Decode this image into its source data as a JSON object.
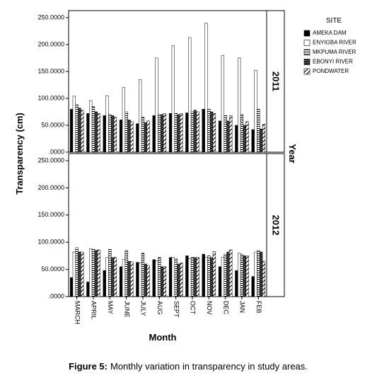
{
  "chart_data": {
    "type": "bar",
    "x_label": "Month",
    "y_label": "Transparency (cm)",
    "facet_label": "Year",
    "legend_title": "SITE",
    "categories": [
      "MARCH",
      "APRIL",
      "MAY",
      "JUNE",
      "JULY",
      "AUG",
      "SEPT",
      "OCT",
      "NOV",
      "DEC",
      "JAN",
      "FEB"
    ],
    "series": [
      {
        "name": "AMEKA DAM",
        "color": "#000000",
        "pattern": "solid"
      },
      {
        "name": "ENYIGBA RIVER",
        "color": "#ffffff",
        "pattern": "empty"
      },
      {
        "name": "MKPUMA RIVER",
        "color": "#ffffff",
        "pattern": "hlines"
      },
      {
        "name": "EBONYI RIVER",
        "color": "#222222",
        "pattern": "dense"
      },
      {
        "name": "PONDWATER",
        "color": "#ffffff",
        "pattern": "diagonal"
      }
    ],
    "panels": [
      {
        "label": "2011",
        "values": [
          [
            80,
            72,
            68,
            60,
            53,
            68,
            72,
            73,
            80,
            58,
            50,
            42
          ],
          [
            104,
            96,
            105,
            120,
            135,
            175,
            198,
            213,
            240,
            180,
            175,
            152
          ],
          [
            88,
            85,
            70,
            75,
            65,
            70,
            72,
            75,
            80,
            68,
            70,
            80
          ],
          [
            82,
            75,
            68,
            60,
            55,
            70,
            70,
            78,
            75,
            58,
            50,
            43
          ],
          [
            78,
            72,
            65,
            57,
            58,
            72,
            72,
            75,
            72,
            68,
            57,
            52
          ]
        ]
      },
      {
        "label": "2012",
        "values": [
          [
            35,
            27,
            48,
            55,
            63,
            68,
            72,
            75,
            78,
            55,
            48,
            37
          ],
          [
            82,
            88,
            72,
            68,
            62,
            66,
            72,
            70,
            72,
            72,
            80,
            82
          ],
          [
            90,
            87,
            87,
            85,
            80,
            72,
            70,
            72,
            75,
            78,
            78,
            85
          ],
          [
            82,
            85,
            72,
            65,
            60,
            55,
            60,
            72,
            72,
            82,
            75,
            82
          ],
          [
            82,
            86,
            72,
            64,
            57,
            55,
            62,
            72,
            83,
            86,
            75,
            65
          ]
        ]
      }
    ],
    "ylim": [
      0,
      263
    ],
    "yticks": [
      {
        "value": 0,
        "label": ".0000"
      },
      {
        "value": 50,
        "label": "50.0000"
      },
      {
        "value": 100,
        "label": "100.0000"
      },
      {
        "value": 150,
        "label": "150.0000"
      },
      {
        "value": 200,
        "label": "200.0000"
      },
      {
        "value": 250,
        "label": "250.0000"
      }
    ],
    "caption": {
      "bold": "Figure 5:",
      "text": "Monthly variation in transparency in study areas."
    }
  }
}
